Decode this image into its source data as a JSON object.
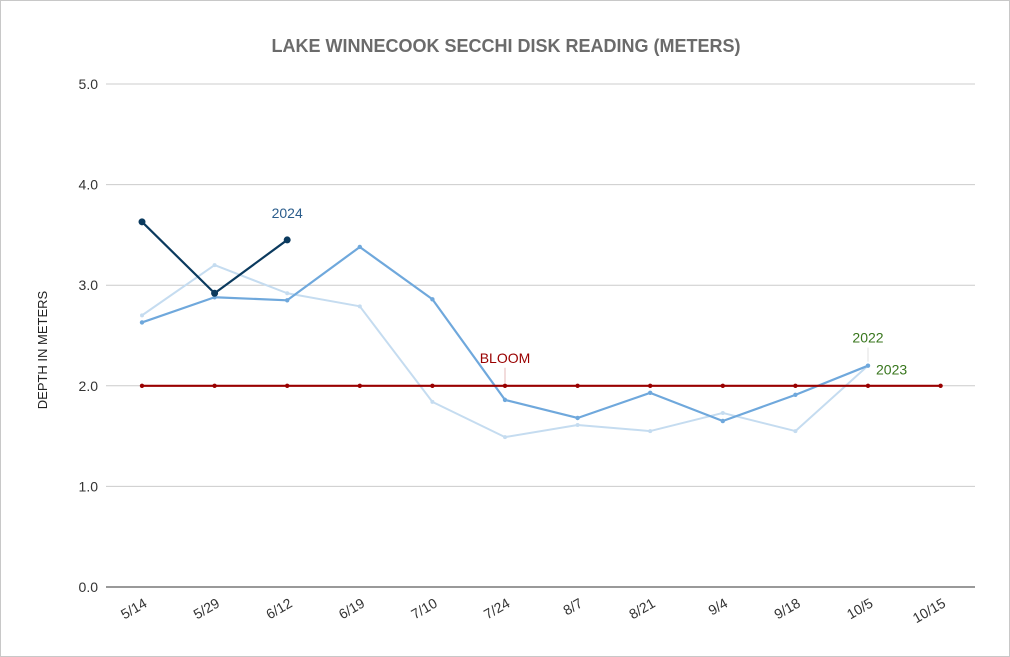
{
  "chart_data": {
    "type": "line",
    "title": "LAKE WINNECOOK SECCHI DISK READING (METERS)",
    "xlabel": "",
    "ylabel": "DEPTH IN METERS",
    "ylim": [
      0,
      5
    ],
    "yticks": [
      "0.0",
      "1.0",
      "2.0",
      "3.0",
      "4.0",
      "5.0"
    ],
    "categories": [
      "5/14",
      "5/29",
      "6/12",
      "6/19",
      "7/10",
      "7/24",
      "8/7",
      "8/21",
      "9/4",
      "9/18",
      "10/5",
      "10/15"
    ],
    "grid": true,
    "legend": "none",
    "series": [
      {
        "name": "2022",
        "color": "#c5dcf0",
        "values": [
          2.7,
          3.2,
          2.92,
          2.79,
          1.84,
          1.49,
          1.61,
          1.55,
          1.73,
          1.55,
          2.2,
          null
        ]
      },
      {
        "name": "2023",
        "color": "#6fa8dc",
        "values": [
          2.63,
          2.88,
          2.85,
          3.38,
          2.86,
          1.86,
          1.68,
          1.93,
          1.65,
          1.91,
          2.2,
          null
        ]
      },
      {
        "name": "2024",
        "color": "#0b3a5e",
        "values": [
          3.63,
          2.92,
          3.45,
          null,
          null,
          null,
          null,
          null,
          null,
          null,
          null,
          null
        ]
      },
      {
        "name": "BLOOM",
        "color": "#990000",
        "values": [
          2.0,
          2.0,
          2.0,
          2.0,
          2.0,
          2.0,
          2.0,
          2.0,
          2.0,
          2.0,
          2.0,
          2.0
        ]
      }
    ],
    "annotations": [
      {
        "text": "2024",
        "color": "#2b5d8c"
      },
      {
        "text": "BLOOM",
        "color": "#990000"
      },
      {
        "text": "2022",
        "color": "#38761d"
      },
      {
        "text": "2023",
        "color": "#38761d"
      }
    ]
  }
}
